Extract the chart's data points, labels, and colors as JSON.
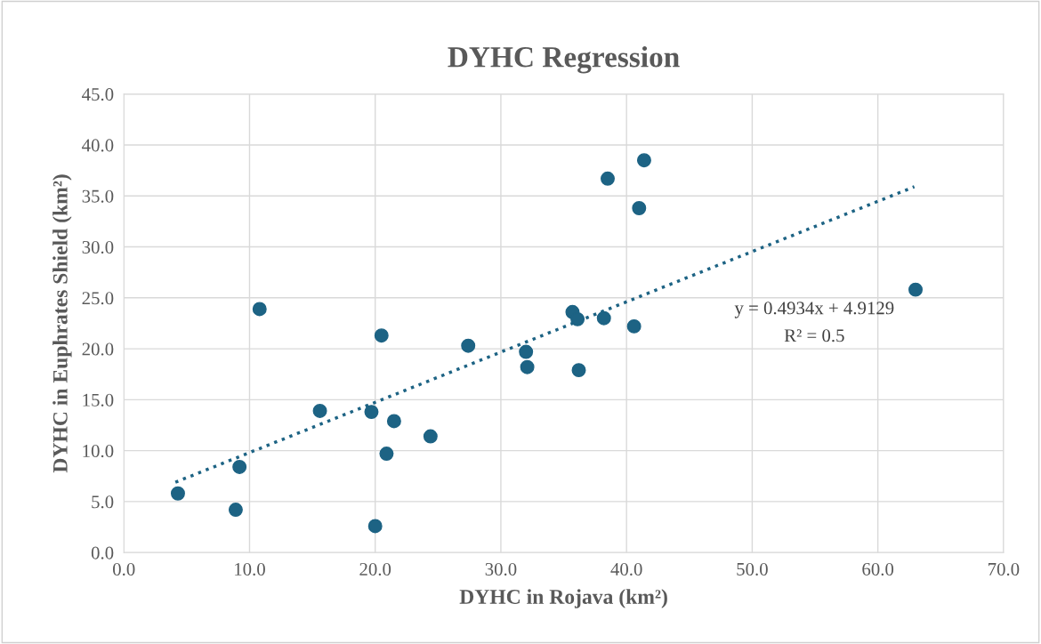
{
  "chart_data": {
    "type": "scatter",
    "title": "DYHC Regression",
    "xlabel": "DYHC in Rojava (km²)",
    "ylabel": "DYHC in Euphrates Shield (km²)",
    "series": [
      {
        "color": "#1d6384",
        "marker": "circle",
        "x": [
          4.3,
          8.9,
          9.2,
          10.8,
          15.6,
          19.7,
          20.0,
          20.5,
          20.9,
          21.5,
          24.4,
          27.4,
          32.0,
          32.1,
          35.7,
          36.1,
          36.2,
          38.2,
          38.5,
          40.6,
          41.0,
          41.4,
          63.0
        ],
        "values": [
          5.8,
          4.2,
          8.4,
          23.9,
          13.9,
          13.8,
          2.6,
          21.3,
          9.7,
          12.9,
          11.4,
          20.3,
          19.7,
          18.2,
          23.6,
          22.9,
          17.9,
          23.0,
          36.7,
          22.2,
          33.8,
          38.5,
          25.8
        ]
      },
      {
        "type": "line",
        "color": "#1d6384",
        "line_style": "dotted",
        "marker": "none",
        "x": [
          4.1,
          62.9
        ],
        "values": [
          6.9,
          35.9
        ]
      }
    ],
    "annotations": [
      "y = 0.4934x + 4.9129",
      "R² = 0.5"
    ],
    "xlim": [
      0,
      70
    ],
    "ylim": [
      0,
      45
    ],
    "xticks": [
      {
        "value": 0,
        "label": "0.0"
      },
      {
        "value": 10,
        "label": "10.0"
      },
      {
        "value": 20,
        "label": "20.0"
      },
      {
        "value": 30,
        "label": "30.0"
      },
      {
        "value": 40,
        "label": "40.0"
      },
      {
        "value": 50,
        "label": "50.0"
      },
      {
        "value": 60,
        "label": "60.0"
      },
      {
        "value": 70,
        "label": "70.0"
      }
    ],
    "yticks": [
      {
        "value": 0,
        "label": "0.0"
      },
      {
        "value": 5,
        "label": "5.0"
      },
      {
        "value": 10,
        "label": "10.0"
      },
      {
        "value": 15,
        "label": "15.0"
      },
      {
        "value": 20,
        "label": "20.0"
      },
      {
        "value": 25,
        "label": "25.0"
      },
      {
        "value": 30,
        "label": "30.0"
      },
      {
        "value": 35,
        "label": "35.0"
      },
      {
        "value": 40,
        "label": "40.0"
      },
      {
        "value": 45,
        "label": "45.0"
      }
    ],
    "grid": true,
    "legend": false
  }
}
